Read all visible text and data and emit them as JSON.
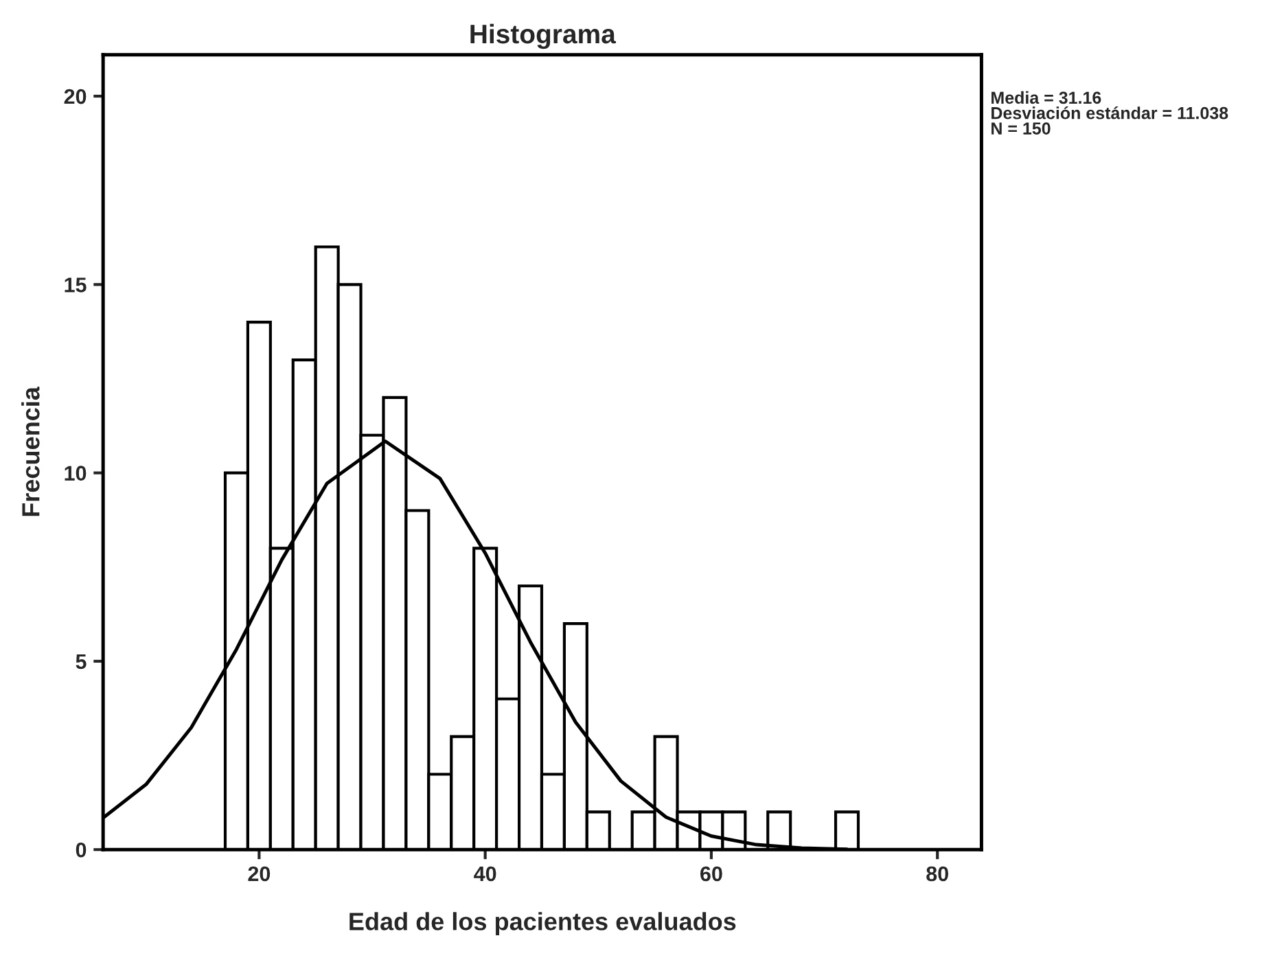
{
  "chart_data": {
    "type": "histogram",
    "title": "Histograma",
    "xlabel": "Edad de los pacientes evaluados",
    "ylabel": "Frecuencia",
    "bins": [
      17,
      19,
      21,
      23,
      25,
      27,
      29,
      31,
      33,
      35,
      37,
      39,
      41,
      43,
      45,
      47,
      49,
      51,
      53,
      55,
      57,
      59,
      61,
      63,
      65,
      67,
      69,
      71,
      73
    ],
    "values": [
      10,
      14,
      8,
      13,
      16,
      15,
      11,
      12,
      9,
      2,
      3,
      8,
      4,
      7,
      2,
      6,
      1,
      0,
      1,
      3,
      1,
      1,
      1,
      0,
      1,
      0,
      0,
      1
    ],
    "color": "#ffffff",
    "series": [
      {
        "type": "line",
        "color": "#000000",
        "x": [
          6.2,
          10,
          14,
          18,
          22,
          26,
          31.16,
          36,
          40,
          44,
          48,
          52,
          56,
          60,
          64,
          68,
          72
        ],
        "values": [
          0.84,
          1.73,
          3.24,
          5.32,
          7.69,
          9.72,
          10.84,
          9.85,
          7.87,
          5.51,
          3.38,
          1.82,
          0.86,
          0.36,
          0.13,
          0.04,
          0.01
        ]
      }
    ],
    "xlim": [
      6.2,
      83.9
    ],
    "xticks": [
      20,
      40,
      60,
      80
    ],
    "ylim": [
      0,
      21.1
    ],
    "yticks": [
      0,
      5,
      10,
      15,
      20
    ],
    "annotations": [
      "Media = 31.16",
      "Desviación estándar = 11.038",
      "N = 150"
    ],
    "grid": false,
    "legend": false
  }
}
